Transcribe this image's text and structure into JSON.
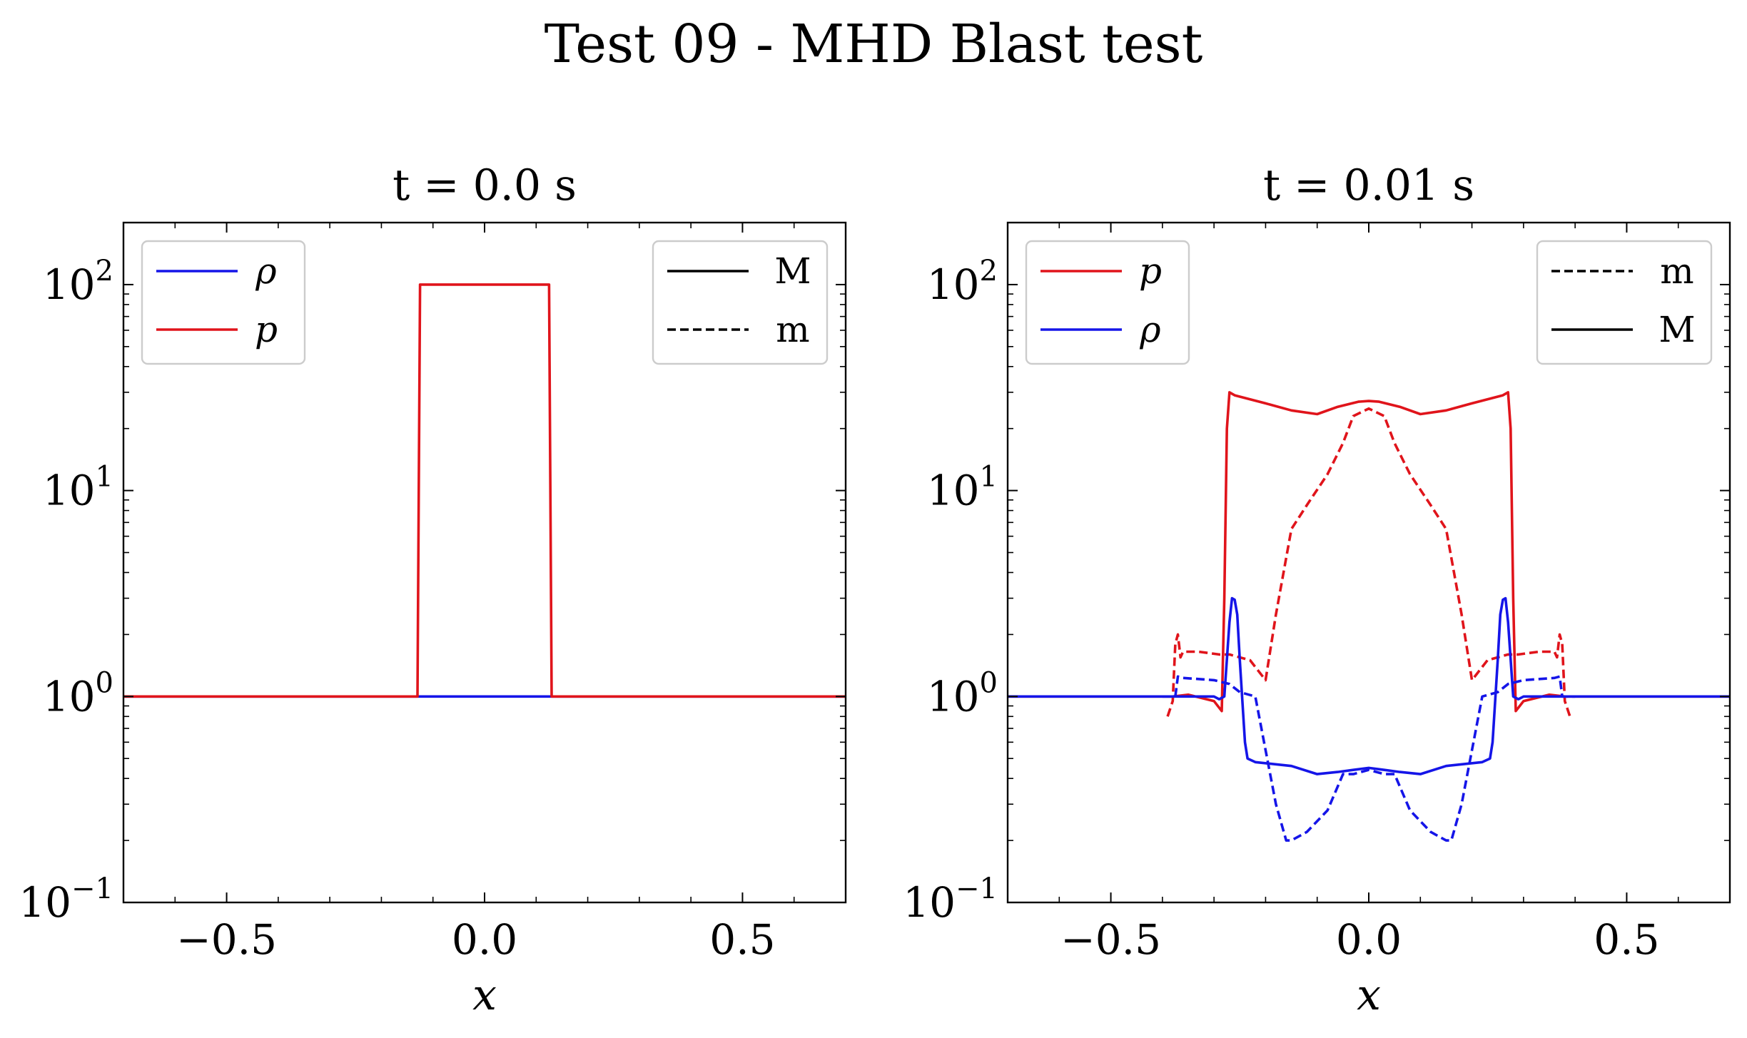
{
  "suptitle": "Test 09 - MHD Blast test",
  "chart_data": [
    {
      "type": "line",
      "title": "t = 0.0 s",
      "xlabel": "x",
      "ylabel": "",
      "xlim": [
        -0.7,
        0.7
      ],
      "ylim": [
        0.1,
        200
      ],
      "yscale": "log",
      "x_ticks": [
        {
          "value": -0.5,
          "label": "−0.5"
        },
        {
          "value": 0.0,
          "label": "0.0"
        },
        {
          "value": 0.5,
          "label": "0.5"
        }
      ],
      "y_ticks": [
        {
          "value": 0.1,
          "base": "10",
          "exp": "−1"
        },
        {
          "value": 1,
          "base": "10",
          "exp": "0"
        },
        {
          "value": 10,
          "base": "10",
          "exp": "1"
        },
        {
          "value": 100,
          "base": "10",
          "exp": "2"
        }
      ],
      "legend_vars": {
        "position": "upper-left",
        "entries": [
          {
            "label": "ρ",
            "color": "#1515e8"
          },
          {
            "label": "p",
            "color": "#e0141b"
          }
        ]
      },
      "legend_styles": {
        "position": "upper-right",
        "entries": [
          {
            "label": "M",
            "dash": "solid"
          },
          {
            "label": "m",
            "dash": "dashed"
          }
        ]
      },
      "series": [
        {
          "name": "ρ",
          "style": "M",
          "color": "#1515e8",
          "dash": "solid",
          "x": [
            -0.7,
            0.7
          ],
          "y": [
            1.0,
            1.0
          ]
        },
        {
          "name": "p",
          "style": "M",
          "color": "#e0141b",
          "dash": "solid",
          "x": [
            -0.7,
            -0.13,
            -0.125,
            0.125,
            0.13,
            0.7
          ],
          "y": [
            1.0,
            1.0,
            100,
            100,
            1.0,
            1.0
          ]
        }
      ]
    },
    {
      "type": "line",
      "title": "t = 0.01 s",
      "xlabel": "x",
      "ylabel": "",
      "xlim": [
        -0.7,
        0.7
      ],
      "ylim": [
        0.1,
        200
      ],
      "yscale": "log",
      "x_ticks": [
        {
          "value": -0.5,
          "label": "−0.5"
        },
        {
          "value": 0.0,
          "label": "0.0"
        },
        {
          "value": 0.5,
          "label": "0.5"
        }
      ],
      "y_ticks": [
        {
          "value": 0.1,
          "base": "10",
          "exp": "−1"
        },
        {
          "value": 1,
          "base": "10",
          "exp": "0"
        },
        {
          "value": 10,
          "base": "10",
          "exp": "1"
        },
        {
          "value": 100,
          "base": "10",
          "exp": "2"
        }
      ],
      "legend_vars": {
        "position": "upper-left",
        "entries": [
          {
            "label": "p",
            "color": "#e0141b"
          },
          {
            "label": "ρ",
            "color": "#1515e8"
          }
        ]
      },
      "legend_styles": {
        "position": "upper-right",
        "entries": [
          {
            "label": "m",
            "dash": "dashed"
          },
          {
            "label": "M",
            "dash": "solid"
          }
        ]
      },
      "series": [
        {
          "name": "p",
          "style": "M",
          "color": "#e0141b",
          "dash": "solid",
          "x": [
            -0.7,
            -0.38,
            -0.35,
            -0.3,
            -0.285,
            -0.28,
            -0.275,
            -0.27,
            -0.26,
            -0.2,
            -0.15,
            -0.1,
            -0.06,
            -0.02,
            0.0,
            0.02,
            0.06,
            0.1,
            0.15,
            0.2,
            0.26,
            0.27,
            0.275,
            0.28,
            0.285,
            0.3,
            0.35,
            0.38,
            0.7
          ],
          "y": [
            1.0,
            1.0,
            1.02,
            0.95,
            0.85,
            3.0,
            20,
            30,
            29,
            26.5,
            24.5,
            23.5,
            25.5,
            27,
            27.2,
            27,
            25.5,
            23.5,
            24.5,
            26.5,
            29,
            30,
            20,
            3.0,
            0.85,
            0.95,
            1.02,
            1.0,
            1.0
          ]
        },
        {
          "name": "p",
          "style": "m",
          "color": "#e0141b",
          "dash": "dashed",
          "x": [
            -0.39,
            -0.38,
            -0.375,
            -0.37,
            -0.365,
            -0.36,
            -0.33,
            -0.29,
            -0.27,
            -0.23,
            -0.2,
            -0.18,
            -0.15,
            -0.12,
            -0.08,
            -0.05,
            -0.03,
            0.0,
            0.03,
            0.05,
            0.08,
            0.12,
            0.15,
            0.18,
            0.2,
            0.23,
            0.27,
            0.29,
            0.33,
            0.36,
            0.365,
            0.37,
            0.375,
            0.38,
            0.39
          ],
          "y": [
            0.8,
            0.95,
            1.8,
            2.0,
            1.55,
            1.65,
            1.65,
            1.6,
            1.6,
            1.5,
            1.2,
            2.5,
            6.5,
            8.5,
            12,
            17,
            23,
            25,
            23,
            17,
            12,
            8.5,
            6.5,
            2.5,
            1.2,
            1.5,
            1.6,
            1.6,
            1.65,
            1.65,
            1.55,
            2.0,
            1.8,
            0.95,
            0.8
          ]
        },
        {
          "name": "ρ",
          "style": "M",
          "color": "#1515e8",
          "dash": "solid",
          "x": [
            -0.7,
            -0.3,
            -0.29,
            -0.28,
            -0.27,
            -0.265,
            -0.26,
            -0.255,
            -0.25,
            -0.24,
            -0.235,
            -0.22,
            -0.15,
            -0.1,
            -0.06,
            -0.03,
            0.0,
            0.03,
            0.06,
            0.1,
            0.15,
            0.22,
            0.235,
            0.24,
            0.25,
            0.255,
            0.26,
            0.265,
            0.27,
            0.28,
            0.29,
            0.3,
            0.7
          ],
          "y": [
            1.0,
            1.0,
            0.97,
            1.0,
            2.3,
            3.0,
            2.95,
            2.5,
            1.5,
            0.6,
            0.5,
            0.48,
            0.46,
            0.42,
            0.43,
            0.44,
            0.45,
            0.44,
            0.43,
            0.42,
            0.46,
            0.48,
            0.5,
            0.6,
            1.5,
            2.5,
            2.95,
            3.0,
            2.3,
            1.0,
            0.97,
            1.0,
            1.0
          ]
        },
        {
          "name": "ρ",
          "style": "m",
          "color": "#1515e8",
          "dash": "dashed",
          "x": [
            -0.4,
            -0.375,
            -0.37,
            -0.36,
            -0.3,
            -0.27,
            -0.25,
            -0.22,
            -0.18,
            -0.16,
            -0.15,
            -0.12,
            -0.08,
            -0.05,
            -0.03,
            0.0,
            0.03,
            0.05,
            0.08,
            0.12,
            0.15,
            0.16,
            0.18,
            0.22,
            0.25,
            0.27,
            0.3,
            0.36,
            0.37,
            0.375,
            0.4
          ],
          "y": [
            1.0,
            1.0,
            1.25,
            1.23,
            1.2,
            1.15,
            1.05,
            1.0,
            0.3,
            0.2,
            0.2,
            0.22,
            0.28,
            0.42,
            0.42,
            0.44,
            0.42,
            0.42,
            0.28,
            0.22,
            0.2,
            0.2,
            0.3,
            1.0,
            1.05,
            1.15,
            1.2,
            1.23,
            1.25,
            1.0,
            1.0
          ]
        }
      ]
    }
  ]
}
